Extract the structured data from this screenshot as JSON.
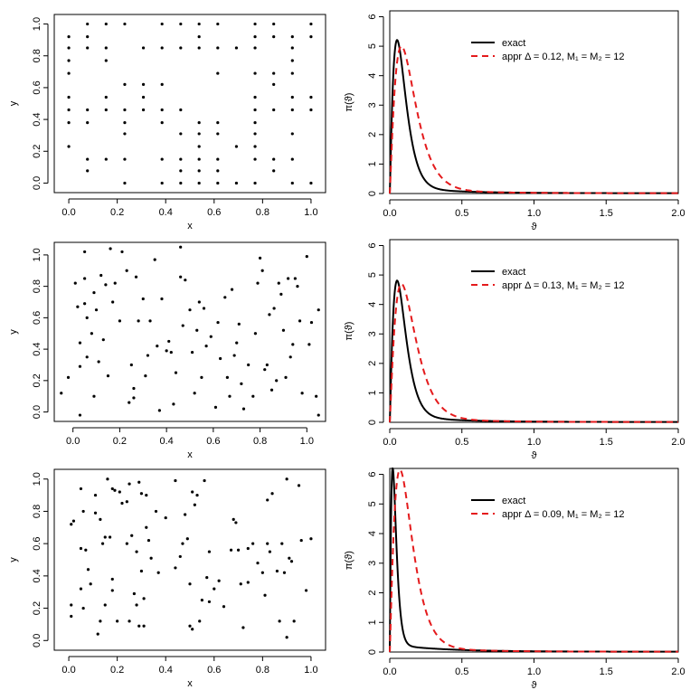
{
  "colors": {
    "exact": "#000000",
    "approx": "#e41a1c",
    "point": "#000000"
  },
  "chart_data": [
    {
      "type": "scatter",
      "title": "",
      "xlabel": "x",
      "ylabel": "y",
      "xlim": [
        -0.06,
        1.06
      ],
      "ylim": [
        -0.06,
        1.06
      ],
      "xticks": [
        "0.0",
        "0.2",
        "0.4",
        "0.6",
        "0.8",
        "1.0"
      ],
      "yticks": [
        "0.0",
        "0.2",
        "0.4",
        "0.6",
        "0.8",
        "1.0"
      ],
      "points": [
        [
          0,
          0.92
        ],
        [
          0,
          0.85
        ],
        [
          0,
          0.77
        ],
        [
          0,
          0.69
        ],
        [
          0,
          0.54
        ],
        [
          0,
          0.46
        ],
        [
          0,
          0.38
        ],
        [
          0,
          0.23
        ],
        [
          0.077,
          1.0
        ],
        [
          0.077,
          0.92
        ],
        [
          0.077,
          0.85
        ],
        [
          0.077,
          0.46
        ],
        [
          0.077,
          0.38
        ],
        [
          0.077,
          0.15
        ],
        [
          0.077,
          0.077
        ],
        [
          0.154,
          1.0
        ],
        [
          0.154,
          0.85
        ],
        [
          0.154,
          0.77
        ],
        [
          0.154,
          0.54
        ],
        [
          0.154,
          0.46
        ],
        [
          0.154,
          0.15
        ],
        [
          0.231,
          1.0
        ],
        [
          0.231,
          0.62
        ],
        [
          0.231,
          0.46
        ],
        [
          0.231,
          0.38
        ],
        [
          0.231,
          0.31
        ],
        [
          0.231,
          0.15
        ],
        [
          0.231,
          0.0
        ],
        [
          0.308,
          0.85
        ],
        [
          0.308,
          0.62
        ],
        [
          0.308,
          0.54
        ],
        [
          0.308,
          0.46
        ],
        [
          0.385,
          1.0
        ],
        [
          0.385,
          0.85
        ],
        [
          0.385,
          0.62
        ],
        [
          0.385,
          0.46
        ],
        [
          0.385,
          0.38
        ],
        [
          0.385,
          0.15
        ],
        [
          0.385,
          0.0
        ],
        [
          0.462,
          1.0
        ],
        [
          0.462,
          0.85
        ],
        [
          0.462,
          0.46
        ],
        [
          0.462,
          0.31
        ],
        [
          0.462,
          0.15
        ],
        [
          0.462,
          0.077
        ],
        [
          0.462,
          0.0
        ],
        [
          0.538,
          1.0
        ],
        [
          0.538,
          0.92
        ],
        [
          0.538,
          0.85
        ],
        [
          0.538,
          0.38
        ],
        [
          0.538,
          0.31
        ],
        [
          0.538,
          0.23
        ],
        [
          0.538,
          0.15
        ],
        [
          0.538,
          0.077
        ],
        [
          0.538,
          0.0
        ],
        [
          0.615,
          1.0
        ],
        [
          0.615,
          0.85
        ],
        [
          0.615,
          0.69
        ],
        [
          0.615,
          0.38
        ],
        [
          0.615,
          0.31
        ],
        [
          0.615,
          0.15
        ],
        [
          0.615,
          0.077
        ],
        [
          0.615,
          0.0
        ],
        [
          0.692,
          0.85
        ],
        [
          0.692,
          0.23
        ],
        [
          0.692,
          0.0
        ],
        [
          0.769,
          1.0
        ],
        [
          0.769,
          0.92
        ],
        [
          0.769,
          0.85
        ],
        [
          0.769,
          0.69
        ],
        [
          0.769,
          0.54
        ],
        [
          0.769,
          0.46
        ],
        [
          0.769,
          0.38
        ],
        [
          0.769,
          0.31
        ],
        [
          0.769,
          0.23
        ],
        [
          0.769,
          0.15
        ],
        [
          0.769,
          0.0
        ],
        [
          0.846,
          1.0
        ],
        [
          0.846,
          0.92
        ],
        [
          0.846,
          0.69
        ],
        [
          0.846,
          0.62
        ],
        [
          0.846,
          0.46
        ],
        [
          0.846,
          0.15
        ],
        [
          0.846,
          0.077
        ],
        [
          0.923,
          0.92
        ],
        [
          0.923,
          0.85
        ],
        [
          0.923,
          0.77
        ],
        [
          0.923,
          0.69
        ],
        [
          0.923,
          0.54
        ],
        [
          0.923,
          0.46
        ],
        [
          0.923,
          0.31
        ],
        [
          0.923,
          0.15
        ],
        [
          0.923,
          0.0
        ],
        [
          1.0,
          1.0
        ],
        [
          1.0,
          0.92
        ],
        [
          1.0,
          0.54
        ],
        [
          1.0,
          0.46
        ],
        [
          1.0,
          0.0
        ]
      ]
    },
    {
      "type": "line",
      "title": "",
      "xlabel": "ϑ",
      "ylabel": "π(ϑ)",
      "xlim": [
        0,
        2
      ],
      "ylim": [
        0,
        6.2
      ],
      "xticks": [
        "0.0",
        "0.5",
        "1.0",
        "1.5",
        "2.0"
      ],
      "yticks": [
        "0",
        "1",
        "2",
        "3",
        "4",
        "5",
        "6"
      ],
      "series": [
        {
          "name": "exact",
          "style": "solid",
          "mode": 0.05,
          "peak": 5.1,
          "floor": 0.02
        },
        {
          "name": "appr Δ = 0.12, M₁ = M₂ = 12",
          "style": "dashed",
          "mode": 0.08,
          "peak": 4.9,
          "floor": 0.02
        }
      ],
      "legend": {
        "placement": "top-right",
        "entries": [
          "exact",
          "appr Δ = 0.12, M₁ = M₂ = 12"
        ]
      }
    },
    {
      "type": "scatter",
      "title": "",
      "xlabel": "x",
      "ylabel": "y",
      "xlim": [
        -0.08,
        1.08
      ],
      "ylim": [
        -0.06,
        1.08
      ],
      "xticks": [
        "0.0",
        "0.2",
        "0.4",
        "0.6",
        "0.8",
        "1.0"
      ],
      "yticks": [
        "0.0",
        "0.2",
        "0.4",
        "0.6",
        "0.8",
        "1.0"
      ],
      "points": [
        [
          -0.05,
          0.12
        ],
        [
          -0.02,
          0.22
        ],
        [
          0.01,
          0.82
        ],
        [
          0.02,
          0.67
        ],
        [
          0.03,
          0.29
        ],
        [
          0.03,
          0.44
        ],
        [
          0.03,
          -0.02
        ],
        [
          0.05,
          0.85
        ],
        [
          0.05,
          0.69
        ],
        [
          0.05,
          1.02
        ],
        [
          0.06,
          0.6
        ],
        [
          0.06,
          0.35
        ],
        [
          0.08,
          0.5
        ],
        [
          0.09,
          0.1
        ],
        [
          0.09,
          0.76
        ],
        [
          0.1,
          0.65
        ],
        [
          0.11,
          0.32
        ],
        [
          0.12,
          0.87
        ],
        [
          0.13,
          0.46
        ],
        [
          0.14,
          0.81
        ],
        [
          0.16,
          1.04
        ],
        [
          0.17,
          0.7
        ],
        [
          0.18,
          0.82
        ],
        [
          0.2,
          0.58
        ],
        [
          0.21,
          1.02
        ],
        [
          0.23,
          0.9
        ],
        [
          0.24,
          0.06
        ],
        [
          0.25,
          0.3
        ],
        [
          0.26,
          0.15
        ],
        [
          0.26,
          0.09
        ],
        [
          0.27,
          0.86
        ],
        [
          0.28,
          0.58
        ],
        [
          0.3,
          0.72
        ],
        [
          0.31,
          0.23
        ],
        [
          0.33,
          0.58
        ],
        [
          0.35,
          0.97
        ],
        [
          0.36,
          0.42
        ],
        [
          0.37,
          0.01
        ],
        [
          0.38,
          0.72
        ],
        [
          0.4,
          0.39
        ],
        [
          0.41,
          0.45
        ],
        [
          0.42,
          0.38
        ],
        [
          0.43,
          0.05
        ],
        [
          0.44,
          0.25
        ],
        [
          0.46,
          1.05
        ],
        [
          0.46,
          0.86
        ],
        [
          0.47,
          0.55
        ],
        [
          0.5,
          0.65
        ],
        [
          0.51,
          0.38
        ],
        [
          0.52,
          0.12
        ],
        [
          0.53,
          0.52
        ],
        [
          0.54,
          0.7
        ],
        [
          0.55,
          0.22
        ],
        [
          0.56,
          0.66
        ],
        [
          0.57,
          0.42
        ],
        [
          0.59,
          0.48
        ],
        [
          0.61,
          0.03
        ],
        [
          0.62,
          0.57
        ],
        [
          0.63,
          0.34
        ],
        [
          0.65,
          0.73
        ],
        [
          0.66,
          0.22
        ],
        [
          0.67,
          0.1
        ],
        [
          0.69,
          0.36
        ],
        [
          0.7,
          0.44
        ],
        [
          0.71,
          0.56
        ],
        [
          0.72,
          0.18
        ],
        [
          0.73,
          0.02
        ],
        [
          0.75,
          0.3
        ],
        [
          0.77,
          0.1
        ],
        [
          0.78,
          0.5
        ],
        [
          0.79,
          0.82
        ],
        [
          0.8,
          0.98
        ],
        [
          0.81,
          0.9
        ],
        [
          0.82,
          0.27
        ],
        [
          0.83,
          0.3
        ],
        [
          0.84,
          0.62
        ],
        [
          0.85,
          0.14
        ],
        [
          0.86,
          0.66
        ],
        [
          0.87,
          0.2
        ],
        [
          0.88,
          0.82
        ],
        [
          0.89,
          0.75
        ],
        [
          0.9,
          0.52
        ],
        [
          0.91,
          0.22
        ],
        [
          0.92,
          0.85
        ],
        [
          0.93,
          0.35
        ],
        [
          0.94,
          0.43
        ],
        [
          0.95,
          0.85
        ],
        [
          0.96,
          0.8
        ],
        [
          0.97,
          0.58
        ],
        [
          0.98,
          0.12
        ],
        [
          1.0,
          0.99
        ],
        [
          1.01,
          0.43
        ],
        [
          1.02,
          0.57
        ],
        [
          1.04,
          0.1
        ],
        [
          1.05,
          0.65
        ],
        [
          1.05,
          -0.02
        ],
        [
          0.15,
          0.23
        ],
        [
          0.32,
          0.36
        ],
        [
          0.48,
          0.84
        ],
        [
          0.68,
          0.78
        ]
      ]
    },
    {
      "type": "line",
      "title": "",
      "xlabel": "ϑ",
      "ylabel": "π(ϑ)",
      "xlim": [
        0,
        2
      ],
      "ylim": [
        0,
        6.2
      ],
      "xticks": [
        "0.0",
        "0.5",
        "1.0",
        "1.5",
        "2.0"
      ],
      "yticks": [
        "0",
        "1",
        "2",
        "3",
        "4",
        "5",
        "6"
      ],
      "series": [
        {
          "name": "exact",
          "style": "solid",
          "mode": 0.05,
          "peak": 4.7,
          "floor": 0.02
        },
        {
          "name": "appr Δ = 0.13, M₁ = M₂ = 12",
          "style": "dashed",
          "mode": 0.08,
          "peak": 4.6,
          "floor": 0.02
        }
      ],
      "legend": {
        "placement": "top-right",
        "entries": [
          "exact",
          "appr Δ = 0.13, M₁ = M₂ = 12"
        ]
      }
    },
    {
      "type": "scatter",
      "title": "",
      "xlabel": "x",
      "ylabel": "y",
      "xlim": [
        -0.06,
        1.06
      ],
      "ylim": [
        -0.06,
        1.06
      ],
      "xticks": [
        "0.0",
        "0.2",
        "0.4",
        "0.6",
        "0.8",
        "1.0"
      ],
      "yticks": [
        "0.0",
        "0.2",
        "0.4",
        "0.6",
        "0.8",
        "1.0"
      ],
      "points": [
        [
          0.01,
          0.72
        ],
        [
          0.01,
          0.22
        ],
        [
          0.01,
          0.15
        ],
        [
          0.02,
          0.74
        ],
        [
          0.05,
          0.94
        ],
        [
          0.05,
          0.57
        ],
        [
          0.05,
          0.32
        ],
        [
          0.06,
          0.8
        ],
        [
          0.07,
          0.56
        ],
        [
          0.08,
          0.44
        ],
        [
          0.09,
          0.35
        ],
        [
          0.11,
          0.9
        ],
        [
          0.11,
          0.79
        ],
        [
          0.12,
          0.04
        ],
        [
          0.13,
          0.75
        ],
        [
          0.13,
          0.12
        ],
        [
          0.14,
          0.6
        ],
        [
          0.15,
          0.22
        ],
        [
          0.16,
          1.0
        ],
        [
          0.17,
          0.64
        ],
        [
          0.18,
          0.94
        ],
        [
          0.18,
          0.38
        ],
        [
          0.18,
          0.31
        ],
        [
          0.19,
          0.93
        ],
        [
          0.2,
          0.12
        ],
        [
          0.21,
          0.92
        ],
        [
          0.22,
          0.85
        ],
        [
          0.24,
          0.86
        ],
        [
          0.24,
          0.6
        ],
        [
          0.25,
          0.12
        ],
        [
          0.25,
          0.97
        ],
        [
          0.26,
          0.65
        ],
        [
          0.27,
          0.29
        ],
        [
          0.28,
          0.55
        ],
        [
          0.28,
          0.22
        ],
        [
          0.29,
          0.98
        ],
        [
          0.29,
          0.09
        ],
        [
          0.3,
          0.91
        ],
        [
          0.3,
          0.43
        ],
        [
          0.31,
          0.26
        ],
        [
          0.31,
          0.09
        ],
        [
          0.32,
          0.9
        ],
        [
          0.32,
          0.7
        ],
        [
          0.33,
          0.62
        ],
        [
          0.34,
          0.51
        ],
        [
          0.36,
          0.8
        ],
        [
          0.37,
          0.42
        ],
        [
          0.4,
          0.76
        ],
        [
          0.44,
          0.99
        ],
        [
          0.46,
          0.52
        ],
        [
          0.47,
          0.6
        ],
        [
          0.48,
          0.78
        ],
        [
          0.49,
          0.63
        ],
        [
          0.5,
          0.09
        ],
        [
          0.5,
          0.35
        ],
        [
          0.51,
          0.92
        ],
        [
          0.51,
          0.07
        ],
        [
          0.52,
          0.84
        ],
        [
          0.53,
          0.9
        ],
        [
          0.54,
          0.12
        ],
        [
          0.55,
          0.25
        ],
        [
          0.56,
          0.99
        ],
        [
          0.57,
          0.39
        ],
        [
          0.58,
          0.24
        ],
        [
          0.6,
          0.32
        ],
        [
          0.62,
          0.37
        ],
        [
          0.64,
          0.21
        ],
        [
          0.67,
          0.56
        ],
        [
          0.68,
          0.75
        ],
        [
          0.69,
          0.73
        ],
        [
          0.7,
          0.56
        ],
        [
          0.71,
          0.35
        ],
        [
          0.72,
          0.08
        ],
        [
          0.74,
          0.57
        ],
        [
          0.76,
          0.6
        ],
        [
          0.78,
          0.48
        ],
        [
          0.8,
          0.42
        ],
        [
          0.81,
          0.28
        ],
        [
          0.82,
          0.87
        ],
        [
          0.82,
          0.6
        ],
        [
          0.83,
          0.55
        ],
        [
          0.84,
          0.91
        ],
        [
          0.86,
          0.43
        ],
        [
          0.87,
          0.12
        ],
        [
          0.88,
          0.6
        ],
        [
          0.89,
          0.42
        ],
        [
          0.9,
          1.0
        ],
        [
          0.91,
          0.51
        ],
        [
          0.92,
          0.49
        ],
        [
          0.93,
          0.12
        ],
        [
          0.95,
          0.96
        ],
        [
          0.96,
          0.62
        ],
        [
          0.98,
          0.31
        ],
        [
          1.0,
          0.63
        ],
        [
          0.06,
          0.2
        ],
        [
          0.44,
          0.45
        ],
        [
          0.58,
          0.55
        ],
        [
          0.9,
          0.02
        ],
        [
          0.15,
          0.64
        ],
        [
          0.74,
          0.36
        ]
      ]
    },
    {
      "type": "line",
      "title": "",
      "xlabel": "ϑ",
      "ylabel": "π(ϑ)",
      "xlim": [
        0,
        2
      ],
      "ylim": [
        0,
        6.2
      ],
      "xticks": [
        "0.0",
        "0.5",
        "1.0",
        "1.5",
        "2.0"
      ],
      "yticks": [
        "0",
        "1",
        "2",
        "3",
        "4",
        "5",
        "6"
      ],
      "series": [
        {
          "name": "exact",
          "style": "solid",
          "mode": 0.02,
          "peak": 6.1,
          "floor": 0.02
        },
        {
          "name": "appr Δ = 0.09, M₁ = M₂ = 12",
          "style": "dashed",
          "mode": 0.07,
          "peak": 6.05,
          "floor": 0.02
        }
      ],
      "legend": {
        "placement": "top-right",
        "entries": [
          "exact",
          "appr Δ = 0.09, M₁ = M₂ = 12"
        ]
      }
    }
  ]
}
